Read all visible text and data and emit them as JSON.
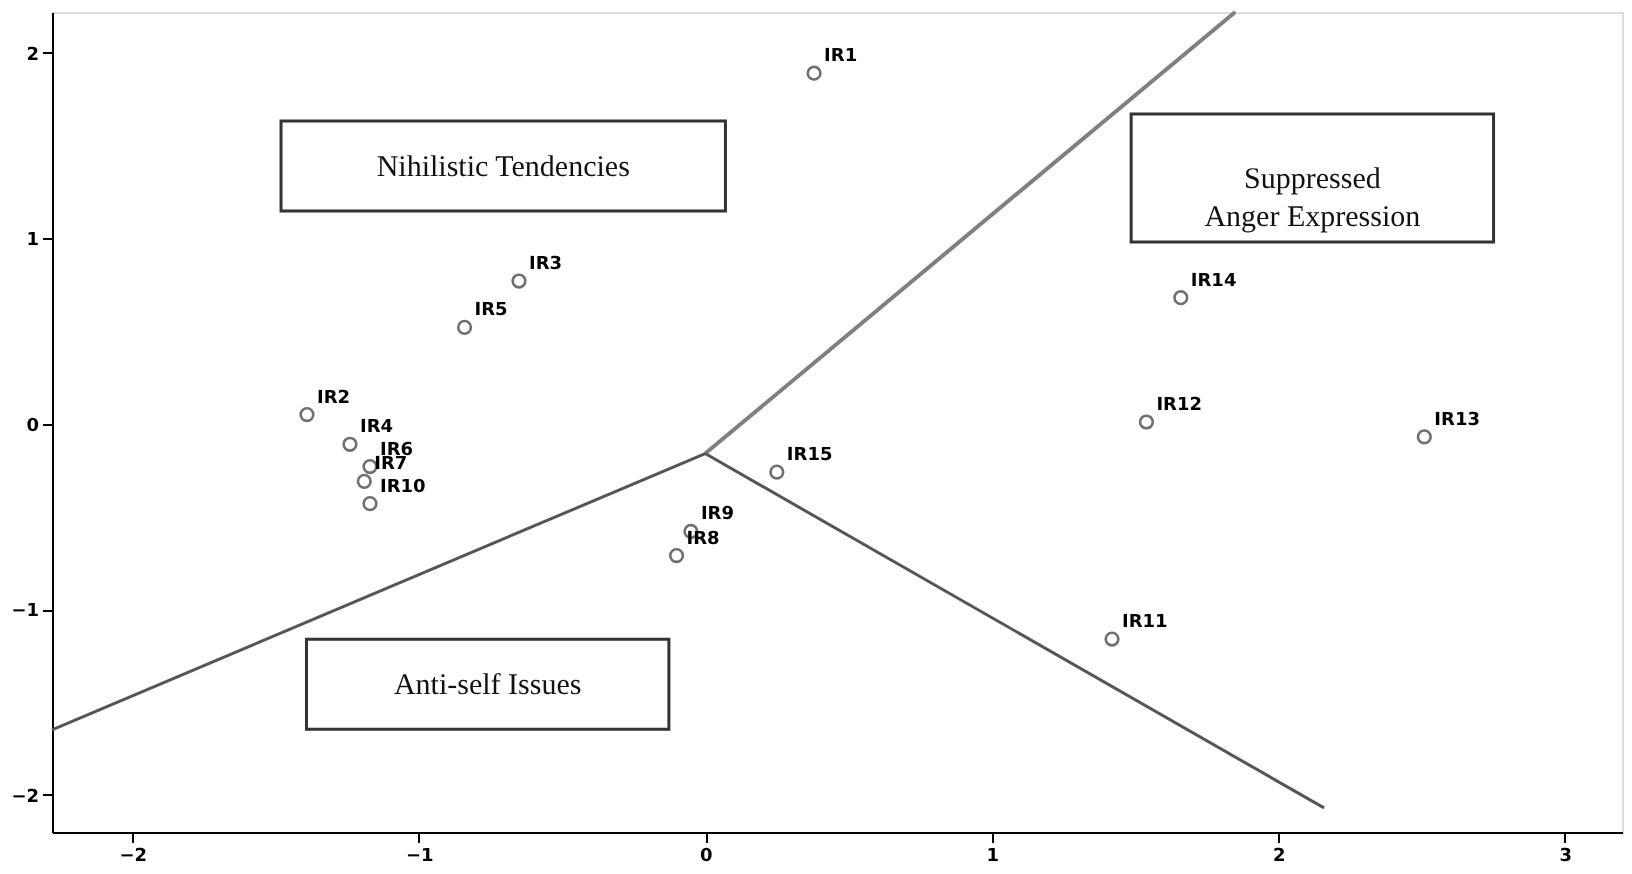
{
  "chart_data": {
    "type": "scatter",
    "xlim": [
      -2.28,
      3.2
    ],
    "ylim": [
      -2.2,
      2.22
    ],
    "xticks": [
      -2,
      -1,
      0,
      1,
      2,
      3
    ],
    "yticks": [
      -2,
      -1,
      0,
      1,
      2
    ],
    "grid": false,
    "series": [
      {
        "marker": "circle",
        "color": "#333333",
        "x": [
          0.38,
          -0.65,
          -0.84,
          -1.39,
          -1.24,
          -1.17,
          -1.19,
          -1.17,
          -0.05,
          -0.1,
          0.25,
          1.66,
          1.54,
          2.51,
          1.42
        ],
        "values": [
          1.89,
          0.77,
          0.52,
          0.05,
          -0.11,
          -0.23,
          -0.31,
          -0.43,
          -0.58,
          -0.71,
          -0.26,
          0.68,
          0.01,
          -0.07,
          -1.16
        ],
        "value_labels": [
          "IR1",
          "IR3",
          "IR5",
          "IR2",
          "IR4",
          "IR6",
          "IR7",
          "IR10",
          "IR9",
          "IR8",
          "IR15",
          "IR14",
          "IR12",
          "IR13",
          "IR11"
        ]
      },
      {
        "type": "line",
        "color": "#7f7f7f",
        "x": [
          0,
          1.85
        ],
        "values": [
          -0.16,
          2.22
        ]
      },
      {
        "type": "line",
        "color": "#555555",
        "x": [
          0,
          -2.28
        ],
        "values": [
          -0.16,
          -1.65
        ]
      },
      {
        "type": "line",
        "color": "#555555",
        "x": [
          0,
          2.16
        ],
        "values": [
          -0.16,
          -2.07
        ]
      }
    ],
    "annotations": [
      "Nihilistic Tendencies",
      "Suppressed Anger Expression",
      "Anti-self Issues"
    ]
  }
}
